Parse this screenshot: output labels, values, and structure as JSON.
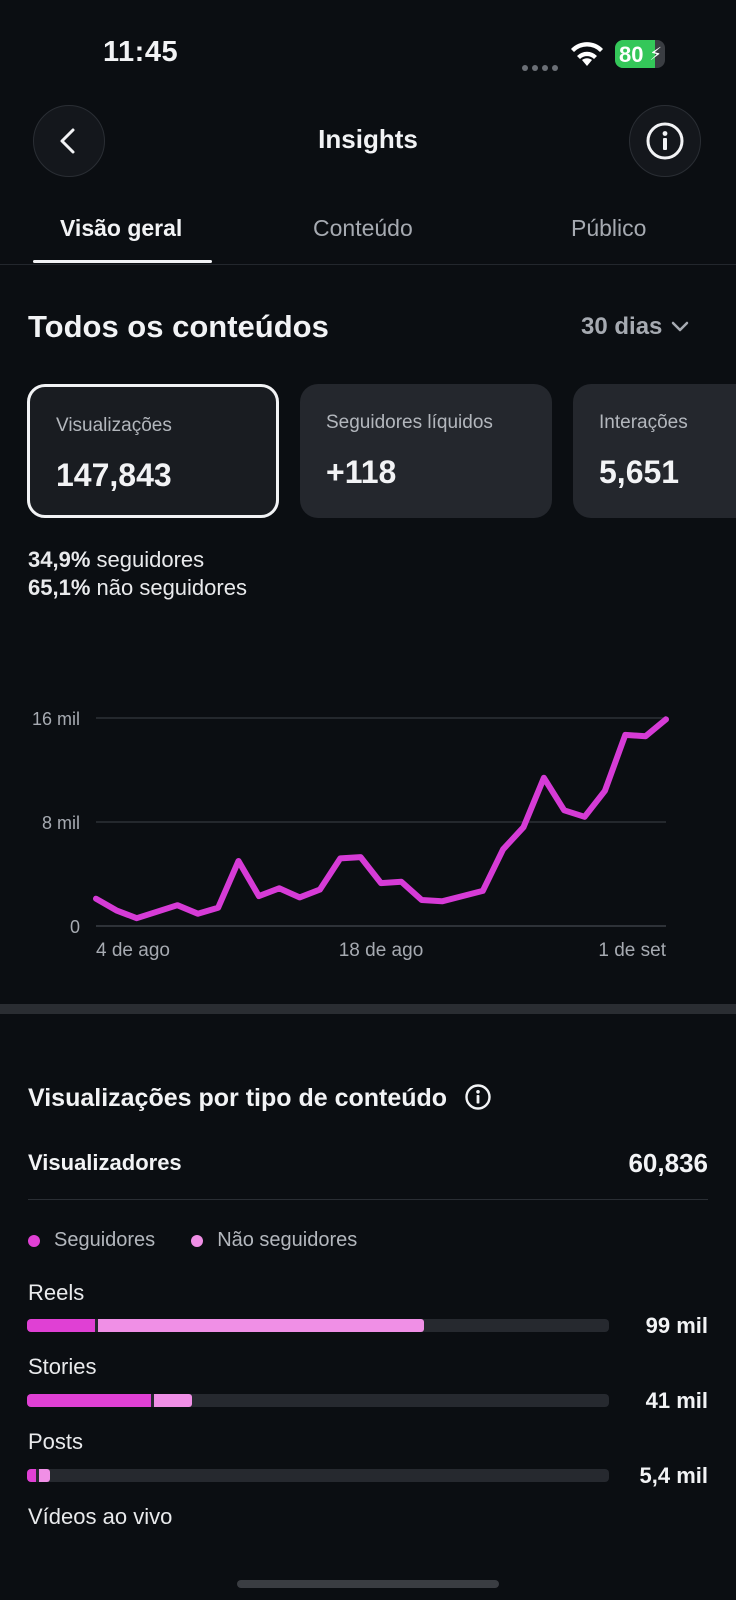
{
  "status_bar": {
    "time": "11:45",
    "battery": "80",
    "battery_level": 0.8
  },
  "header": {
    "title": "Insights",
    "back_icon": "chevron-left-icon",
    "info_icon": "info-icon"
  },
  "tabs": [
    {
      "label": "Visão geral",
      "active": true
    },
    {
      "label": "Conteúdo",
      "active": false
    },
    {
      "label": "Público",
      "active": false
    }
  ],
  "overview": {
    "title": "Todos os conteúdos",
    "range": "30 dias",
    "cards": [
      {
        "label": "Visualizações",
        "value": "147,843",
        "selected": true
      },
      {
        "label": "Seguidores líquidos",
        "value": "+118",
        "selected": false
      },
      {
        "label": "Interações",
        "value": "5,651",
        "selected": false
      }
    ],
    "followers_share": {
      "value": "34,9%",
      "label": "seguidores"
    },
    "non_followers_share": {
      "value": "65,1%",
      "label": "não seguidores"
    }
  },
  "chart_data": {
    "type": "line",
    "color": "#d63bd6",
    "y_ticks": [
      {
        "value": 0,
        "label": "0"
      },
      {
        "value": 8000,
        "label": "8 mil"
      },
      {
        "value": 16000,
        "label": "16 mil"
      }
    ],
    "x_ticks": [
      {
        "index": 0,
        "label": "4 de ago"
      },
      {
        "index": 14,
        "label": "18 de ago"
      },
      {
        "index": 28,
        "label": "1 de set"
      }
    ],
    "ylim": [
      0,
      16000
    ],
    "grid": true,
    "values": [
      2100,
      1200,
      600,
      1100,
      1600,
      950,
      1400,
      5000,
      2300,
      2900,
      2200,
      2800,
      5200,
      5300,
      3300,
      3400,
      2000,
      1900,
      2300,
      2700,
      5900,
      7600,
      11400,
      8900,
      8400,
      10400,
      14700,
      14600,
      15900
    ]
  },
  "by_type": {
    "title": "Visualizações por tipo de conteúdo",
    "info_icon": "info-icon",
    "viewers_label": "Visualizadores",
    "viewers_value": "60,836",
    "legend": [
      {
        "label": "Seguidores",
        "color": "#e040d4"
      },
      {
        "label": "Não seguidores",
        "color": "#f08fe6"
      }
    ],
    "rows": [
      {
        "label": "Reels",
        "value": "99 mil",
        "followers_fraction": 0.117,
        "non_followers_fraction": 0.565
      },
      {
        "label": "Stories",
        "value": "41 mil",
        "followers_fraction": 0.213,
        "non_followers_fraction": 0.071
      },
      {
        "label": "Posts",
        "value": "5,4 mil",
        "followers_fraction": 0.015,
        "non_followers_fraction": 0.025
      },
      {
        "label": "Vídeos ao vivo",
        "value": "",
        "followers_fraction": 0,
        "non_followers_fraction": 0
      }
    ]
  }
}
